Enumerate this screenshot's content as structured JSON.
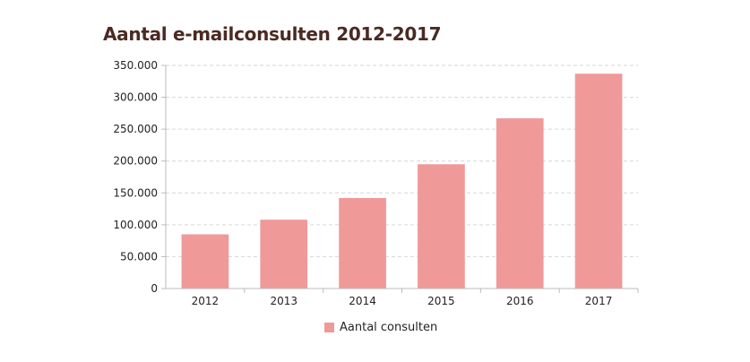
{
  "chart_data": {
    "type": "bar",
    "title": "Aantal e-mailconsulten 2012-2017",
    "xlabel": "",
    "ylabel": "",
    "categories": [
      "2012",
      "2013",
      "2014",
      "2015",
      "2016",
      "2017"
    ],
    "series": [
      {
        "name": "Aantal consulten",
        "values": [
          85000,
          108000,
          142000,
          195000,
          267000,
          337000
        ],
        "color": "#f09999"
      }
    ],
    "ylim": [
      0,
      350000
    ],
    "yticks": [
      0,
      50000,
      100000,
      150000,
      200000,
      250000,
      300000,
      350000
    ],
    "ytick_labels": [
      "0",
      "50.000",
      "100.000",
      "150.000",
      "200.000",
      "250.000",
      "300.000",
      "350.000"
    ],
    "grid": true,
    "legend_position": "bottom"
  }
}
